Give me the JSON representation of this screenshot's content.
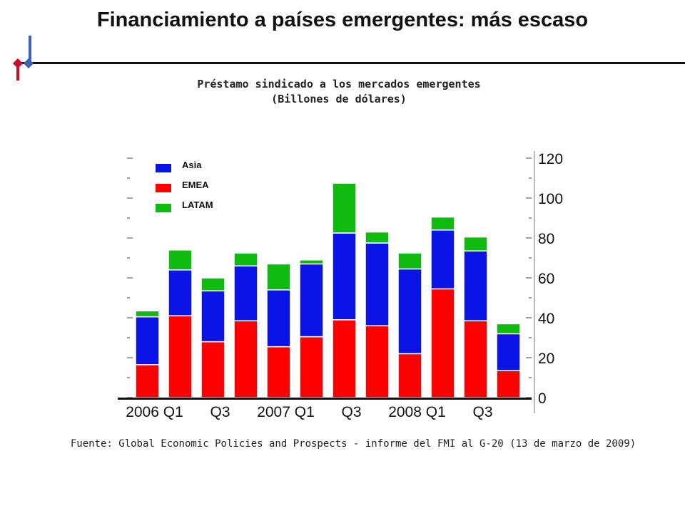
{
  "header": {
    "title": "Financiamiento a países emergentes: más escaso"
  },
  "chart_title": {
    "line1": "Préstamo sindicado a los mercados emergentes",
    "line2": "(Billones de dólares)"
  },
  "source": "Fuente: Global Economic Policies and Prospects - informe del FMI al G-20 (13 de marzo de 2009)",
  "colors": {
    "asia": "#0a14e6",
    "emea": "#ff0000",
    "latam": "#10bb10"
  },
  "chart_data": {
    "type": "bar",
    "stacked": true,
    "categories": [
      "2006 Q1",
      "Q2",
      "Q3",
      "Q4",
      "2007 Q1",
      "Q2",
      "Q3",
      "Q4",
      "2008 Q1",
      "Q2",
      "Q3",
      "Q4"
    ],
    "x_tick_labels": [
      "2006 Q1",
      "Q3",
      "2007 Q1",
      "Q3",
      "2008 Q1",
      "Q3"
    ],
    "y_ticks": [
      "0",
      "20",
      "40",
      "60",
      "80",
      "100",
      "120"
    ],
    "ylim": [
      0,
      120
    ],
    "y_axis_side": "right",
    "legend_position": "top-left",
    "series": [
      {
        "name": "EMEA",
        "values": [
          16.5,
          41,
          28,
          38.5,
          25.5,
          30.5,
          39,
          36,
          22,
          54.5,
          38.5,
          13.5
        ]
      },
      {
        "name": "Asia",
        "values": [
          24,
          23,
          25.5,
          27.5,
          28.5,
          36.5,
          43.5,
          41.5,
          42.5,
          29.5,
          35,
          18.5
        ]
      },
      {
        "name": "LATAM",
        "values": [
          3,
          10,
          6.5,
          6.5,
          13,
          2,
          25,
          5.5,
          8,
          6.5,
          7,
          5
        ]
      }
    ]
  }
}
